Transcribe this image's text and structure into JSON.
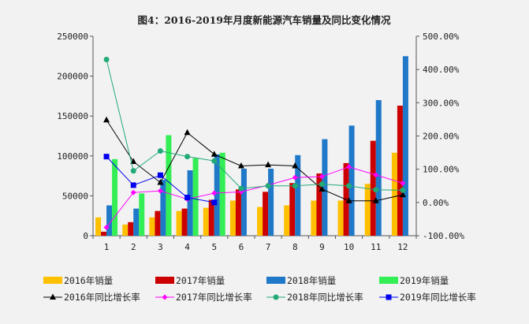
{
  "chart_data": {
    "type": "bar",
    "title": "图4：2016-2019年月度新能源汽车销量及同比变化情况",
    "categories": [
      "1",
      "2",
      "3",
      "4",
      "5",
      "6",
      "7",
      "8",
      "9",
      "10",
      "11",
      "12"
    ],
    "ylim": [
      0,
      250000
    ],
    "y_ticks": [
      "0",
      "50000",
      "100000",
      "150000",
      "200000",
      "250000"
    ],
    "y2lim": [
      -100,
      500
    ],
    "y2_ticks": [
      "-100.00%",
      "0.00%",
      "100.00%",
      "200.00%",
      "300.00%",
      "400.00%",
      "500.00%"
    ],
    "grid": false,
    "legend_position": "bottom",
    "bar_series": [
      {
        "name": "2016年销量",
        "color": "#ffc000",
        "values": [
          23000,
          14000,
          23000,
          31000,
          35000,
          44000,
          36000,
          38000,
          44000,
          44000,
          65000,
          104000
        ]
      },
      {
        "name": "2017年销量",
        "color": "#cc0000",
        "values": [
          5000,
          17000,
          31000,
          34000,
          45000,
          58000,
          55000,
          66000,
          78000,
          91000,
          119000,
          163000
        ]
      },
      {
        "name": "2018年销量",
        "color": "#1f78c8",
        "values": [
          38000,
          34000,
          70000,
          82000,
          102000,
          84000,
          84000,
          101000,
          121000,
          138000,
          170000,
          225000
        ]
      },
      {
        "name": "2019年销量",
        "color": "#33ee55",
        "values": [
          96000,
          53000,
          126000,
          97000,
          104000,
          null,
          null,
          null,
          null,
          null,
          null,
          null
        ]
      }
    ],
    "line_series": [
      {
        "name": "2016年同比增长率",
        "color": "#000000",
        "marker": "triangle",
        "values": [
          248,
          123,
          60,
          210,
          145,
          110,
          113,
          110,
          40,
          5,
          5,
          23
        ]
      },
      {
        "name": "2017年同比增长率",
        "color": "#ff00ff",
        "marker": "diamond",
        "values": [
          -75,
          30,
          35,
          10,
          28,
          32,
          52,
          75,
          78,
          107,
          83,
          58
        ]
      },
      {
        "name": "2018年同比增长率",
        "color": "#22aa77",
        "marker": "circle",
        "values": [
          430,
          95,
          155,
          138,
          125,
          42,
          50,
          50,
          55,
          50,
          38,
          37
        ]
      },
      {
        "name": "2019年同比增长率",
        "color": "#0000ee",
        "marker": "square",
        "values": [
          138,
          52,
          82,
          15,
          0,
          null,
          null,
          null,
          null,
          null,
          null,
          null
        ]
      }
    ]
  }
}
